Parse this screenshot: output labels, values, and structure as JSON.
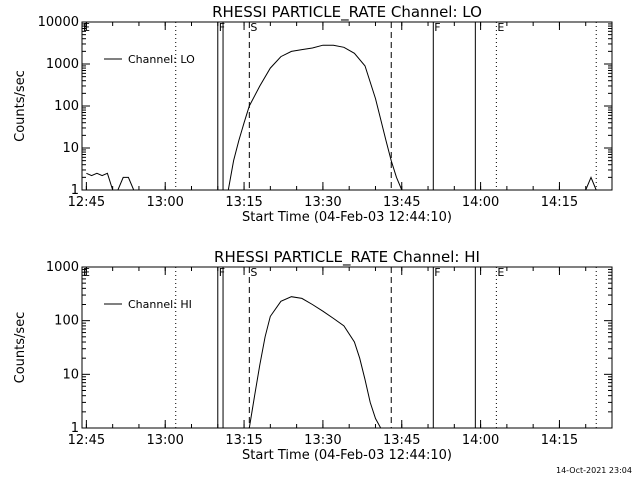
{
  "footer": {
    "timestamp": "14-Oct-2021 23:04"
  },
  "chart_data": [
    {
      "type": "line",
      "title": "RHESSI PARTICLE_RATE Channel: LO",
      "xlabel": "Start Time (04-Feb-03 12:44:10)",
      "ylabel": "Counts/sec",
      "yscale": "log",
      "xlim": [
        "12:44:10",
        "14:25"
      ],
      "ylim": [
        1,
        10000
      ],
      "xticks": [
        "12:45",
        "13:00",
        "13:15",
        "13:30",
        "13:45",
        "14:00",
        "14:15"
      ],
      "yticks": [
        "1",
        "10",
        "100",
        "1000",
        "10000"
      ],
      "legend": {
        "label": "Channel: LO",
        "placement": "top-left"
      },
      "markers": [
        {
          "label": "E",
          "time": "12:44:10",
          "style": "dotted"
        },
        {
          "label": "",
          "time": "13:02",
          "style": "dotted"
        },
        {
          "label": "F",
          "time": "13:10",
          "style": "solid"
        },
        {
          "label": "",
          "time": "13:11",
          "style": "solid"
        },
        {
          "label": "S",
          "time": "13:16",
          "style": "dashed"
        },
        {
          "label": "",
          "time": "13:43",
          "style": "dashed"
        },
        {
          "label": "F",
          "time": "13:51",
          "style": "solid"
        },
        {
          "label": "",
          "time": "13:59",
          "style": "solid"
        },
        {
          "label": "E",
          "time": "14:03",
          "style": "dotted"
        },
        {
          "label": "",
          "time": "14:22",
          "style": "dotted"
        }
      ],
      "series": [
        {
          "x": [
            "12:45",
            "12:46",
            "12:47",
            "12:48",
            "12:49",
            "12:50",
            "12:51",
            "12:52",
            "12:53",
            "12:54",
            "13:12",
            "13:13",
            "13:14",
            "13:15",
            "13:16",
            "13:18",
            "13:20",
            "13:22",
            "13:24",
            "13:26",
            "13:28",
            "13:30",
            "13:32",
            "13:34",
            "13:36",
            "13:38",
            "13:40",
            "13:42",
            "13:43",
            "13:44",
            "13:45",
            "14:20",
            "14:21",
            "14:22"
          ],
          "y": [
            2.5,
            2.2,
            2.5,
            2.2,
            2.5,
            1,
            1,
            2,
            2,
            1,
            1,
            5,
            15,
            40,
            100,
            300,
            800,
            1500,
            2000,
            2200,
            2400,
            2800,
            2800,
            2500,
            1800,
            900,
            150,
            15,
            5,
            2,
            1,
            1,
            2,
            1
          ]
        }
      ]
    },
    {
      "type": "line",
      "title": "RHESSI PARTICLE_RATE Channel: HI",
      "xlabel": "Start Time (04-Feb-03 12:44:10)",
      "ylabel": "Counts/sec",
      "yscale": "log",
      "xlim": [
        "12:44:10",
        "14:25"
      ],
      "ylim": [
        1,
        1000
      ],
      "xticks": [
        "12:45",
        "13:00",
        "13:15",
        "13:30",
        "13:45",
        "14:00",
        "14:15"
      ],
      "yticks": [
        "1",
        "10",
        "100",
        "1000"
      ],
      "legend": {
        "label": "Channel: HI",
        "placement": "top-left"
      },
      "markers": [
        {
          "label": "E",
          "time": "12:44:10",
          "style": "dotted"
        },
        {
          "label": "",
          "time": "13:02",
          "style": "dotted"
        },
        {
          "label": "F",
          "time": "13:10",
          "style": "solid"
        },
        {
          "label": "",
          "time": "13:11",
          "style": "solid"
        },
        {
          "label": "S",
          "time": "13:16",
          "style": "dashed"
        },
        {
          "label": "",
          "time": "13:43",
          "style": "dashed"
        },
        {
          "label": "F",
          "time": "13:51",
          "style": "solid"
        },
        {
          "label": "",
          "time": "13:59",
          "style": "solid"
        },
        {
          "label": "E",
          "time": "14:03",
          "style": "dotted"
        },
        {
          "label": "",
          "time": "14:22",
          "style": "dotted"
        }
      ],
      "series": [
        {
          "x": [
            "13:16",
            "13:17",
            "13:18",
            "13:19",
            "13:20",
            "13:22",
            "13:24",
            "13:26",
            "13:28",
            "13:30",
            "13:32",
            "13:34",
            "13:36",
            "13:37",
            "13:38",
            "13:39",
            "13:40",
            "13:41"
          ],
          "y": [
            1,
            4,
            15,
            50,
            120,
            230,
            280,
            260,
            200,
            150,
            110,
            80,
            40,
            20,
            8,
            3,
            1.5,
            1
          ]
        }
      ]
    }
  ]
}
